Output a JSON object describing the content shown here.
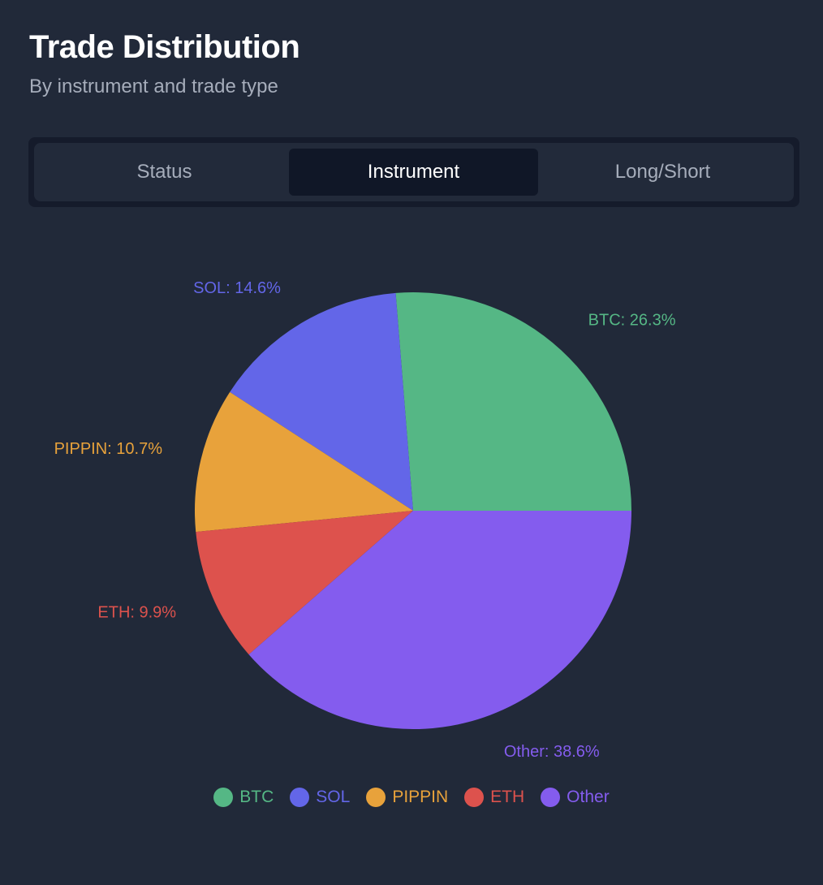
{
  "header": {
    "title": "Trade Distribution",
    "subtitle": "By instrument and trade type"
  },
  "tabs": [
    {
      "label": "Status",
      "active": false
    },
    {
      "label": "Instrument",
      "active": true
    },
    {
      "label": "Long/Short",
      "active": false
    }
  ],
  "chart_data": {
    "type": "pie",
    "categories": [
      "BTC",
      "SOL",
      "PIPPIN",
      "ETH",
      "Other"
    ],
    "values": [
      26.3,
      14.6,
      10.7,
      9.9,
      38.6
    ],
    "value_unit": "%",
    "slice_labels": [
      "BTC: 26.3%",
      "SOL: 14.6%",
      "PIPPIN: 10.7%",
      "ETH: 9.9%",
      "Other: 38.6%"
    ],
    "colors": [
      "#55b785",
      "#6366e8",
      "#e8a23b",
      "#dd524d",
      "#845cee"
    ],
    "start_angle_deg": 0,
    "direction": "counterclockwise",
    "legend": {
      "position": "bottom",
      "items": [
        "BTC",
        "SOL",
        "PIPPIN",
        "ETH",
        "Other"
      ]
    }
  }
}
